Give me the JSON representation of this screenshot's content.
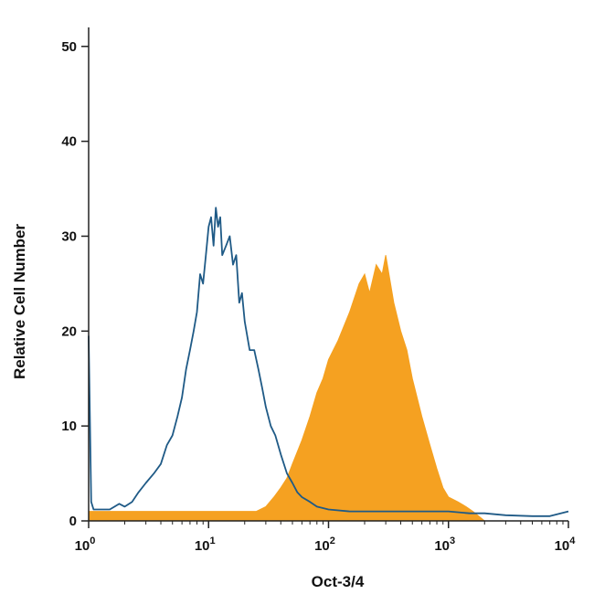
{
  "chart_data": {
    "type": "area",
    "title": "",
    "xlabel": "Oct-3/4",
    "ylabel": "Relative Cell Number",
    "xscale": "log",
    "xlim": [
      1,
      10000
    ],
    "ylim": [
      0,
      52
    ],
    "grid": false,
    "legend": "none",
    "x_ticks": [
      {
        "value": 1,
        "base": "10",
        "exp": "0"
      },
      {
        "value": 10,
        "base": "10",
        "exp": "1"
      },
      {
        "value": 100,
        "base": "10",
        "exp": "2"
      },
      {
        "value": 1000,
        "base": "10",
        "exp": "3"
      },
      {
        "value": 10000,
        "base": "10",
        "exp": "4"
      }
    ],
    "y_ticks": [
      {
        "value": 0,
        "label": "0"
      },
      {
        "value": 10,
        "label": "10"
      },
      {
        "value": 20,
        "label": "20"
      },
      {
        "value": 30,
        "label": "30"
      },
      {
        "value": 40,
        "label": "40"
      },
      {
        "value": 50,
        "label": "50"
      }
    ],
    "series": [
      {
        "style": "filled",
        "color": "#f5a121",
        "x": [
          1,
          1.25,
          1.6,
          2,
          2.5,
          3,
          4,
          5,
          7,
          10,
          15,
          20,
          25,
          30,
          35,
          40,
          45,
          50,
          60,
          70,
          80,
          90,
          100,
          120,
          150,
          180,
          200,
          220,
          250,
          280,
          300,
          350,
          400,
          450,
          500,
          600,
          700,
          800,
          900,
          1000,
          1200,
          1400,
          1600,
          2000,
          10000
        ],
        "y": [
          1,
          1,
          1,
          1,
          1,
          1,
          1,
          1,
          1,
          1,
          1,
          1,
          1,
          1.5,
          2.5,
          3.5,
          4.5,
          6,
          8.5,
          11,
          13.5,
          15,
          17,
          19,
          22,
          25,
          26,
          24,
          27,
          26,
          28,
          23,
          20,
          18,
          15,
          11,
          8,
          5.5,
          3.5,
          2.5,
          2,
          1.5,
          1,
          0,
          0
        ]
      },
      {
        "style": "outline",
        "color": "#1f5a86",
        "x": [
          1,
          1.05,
          1.1,
          1.2,
          1.5,
          1.8,
          2,
          2.3,
          2.6,
          3,
          3.5,
          4,
          4.5,
          5,
          5.5,
          6,
          6.5,
          7,
          7.5,
          8,
          8.5,
          9,
          9.5,
          10,
          10.5,
          11,
          11.5,
          12,
          12.5,
          13,
          14,
          15,
          16,
          17,
          18,
          19,
          20,
          22,
          24,
          26,
          28,
          30,
          33,
          36,
          40,
          45,
          50,
          55,
          60,
          70,
          80,
          100,
          150,
          200,
          300,
          500,
          700,
          1000,
          1500,
          2000,
          3000,
          5000,
          7000,
          10000
        ],
        "y": [
          19.5,
          2,
          1.2,
          1.2,
          1.2,
          1.8,
          1.5,
          2,
          3,
          4,
          5,
          6,
          8,
          9,
          11,
          13,
          16,
          18,
          20,
          22,
          26,
          25,
          28,
          31,
          32,
          29,
          33,
          31,
          32,
          28,
          29,
          30,
          27,
          28,
          23,
          24,
          21,
          18,
          18,
          16,
          14,
          12,
          10,
          9,
          7,
          5,
          4,
          3,
          2.5,
          2,
          1.5,
          1.2,
          1,
          1,
          1,
          1,
          1,
          1,
          0.8,
          0.8,
          0.6,
          0.5,
          0.5,
          1
        ]
      }
    ]
  }
}
